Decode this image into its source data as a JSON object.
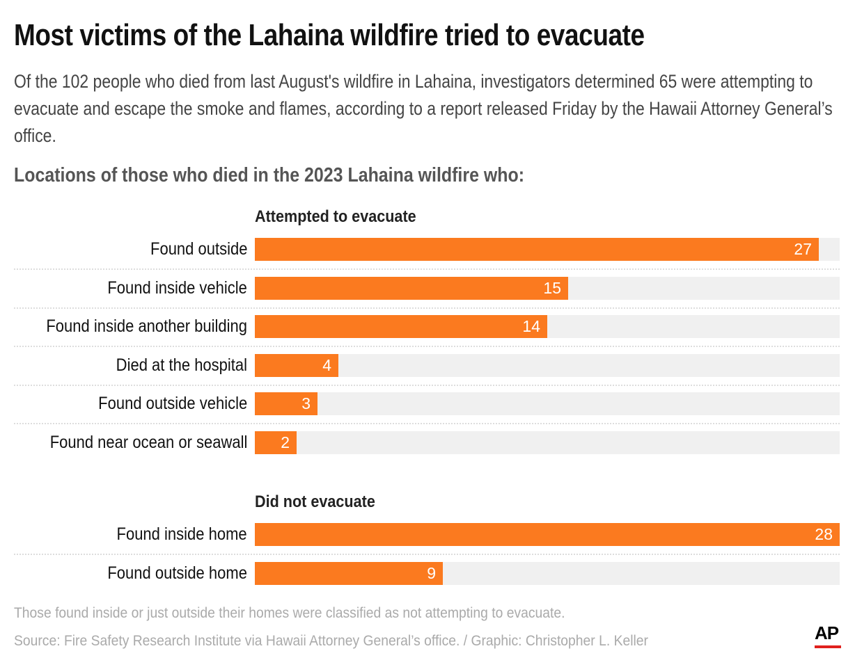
{
  "title": "Most victims of the Lahaina wildfire tried to evacuate",
  "subtitle": "Of the 102 people who died from last August's wildfire in Lahaina, investigators determined 65 were attempting to evacuate and escape the smoke and flames, according to a report released Friday by the Hawaii Attorney General’s office.",
  "chart_heading": "Locations of those who died in the 2023 Lahaina wildfire who:",
  "chart_data": {
    "type": "bar",
    "orientation": "horizontal",
    "xlim": [
      0,
      28
    ],
    "bar_color": "#fb7a1f",
    "track_color": "#f0f0f0",
    "groups": [
      {
        "title": "Attempted to evacuate",
        "categories": [
          "Found outside",
          "Found inside vehicle",
          "Found inside another building",
          "Died at the hospital",
          "Found outside vehicle",
          "Found near ocean or seawall"
        ],
        "values": [
          27,
          15,
          14,
          4,
          3,
          2
        ]
      },
      {
        "title": "Did not evacuate",
        "categories": [
          "Found inside home",
          "Found outside home"
        ],
        "values": [
          28,
          9
        ]
      }
    ]
  },
  "note": "Those found inside or just outside their homes were classified as not attempting to evacuate.",
  "source": "Source: Fire Safety Research Institute via Hawaii Attorney General’s office. / Graphic: Christopher L. Keller",
  "logo": "AP"
}
